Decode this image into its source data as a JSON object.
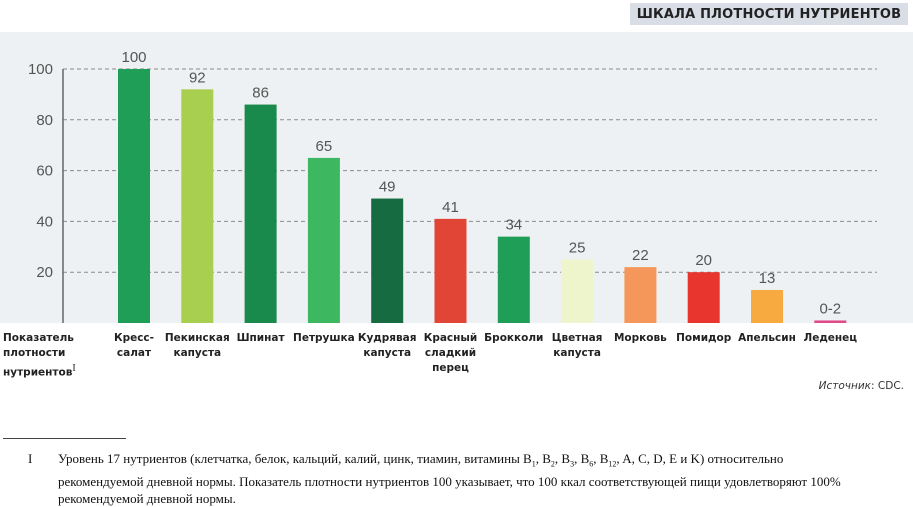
{
  "header": {
    "title": "ШКАЛА ПЛОТНОСТИ НУТРИЕНТОВ"
  },
  "chart_data": {
    "type": "bar",
    "title": "ШКАЛА ПЛОТНОСТИ НУТРИЕНТОВ",
    "ylabel": "Показатель плотности нутриентов",
    "ylabel_lines": [
      "Показатель",
      "плотности",
      "нутриентов"
    ],
    "ylabel_footnote_mark": "I",
    "xlabel": "",
    "ylim": [
      0,
      100
    ],
    "yticks": [
      20,
      40,
      60,
      80,
      100
    ],
    "grid": true,
    "categories": [
      "Кресс-салат",
      "Пекинская капуста",
      "Шпинат",
      "Петрушка",
      "Кудрявая капуста",
      "Красный сладкий перец",
      "Брокколи",
      "Цветная капуста",
      "Морковь",
      "Помидор",
      "Апельсин",
      "Леденец"
    ],
    "category_labels": [
      "Кресс-\nсалат",
      "Пекинская\nкапуста",
      "Шпинат",
      "Петрушка",
      "Кудрявая\nкапуста",
      "Красный\nсладкий\nперец",
      "Брокколи",
      "Цветная\nкапуста",
      "Морковь",
      "Помидор",
      "Апельсин",
      "Леденец"
    ],
    "values": [
      100,
      92,
      86,
      65,
      49,
      41,
      34,
      25,
      22,
      20,
      13,
      1
    ],
    "data_labels": [
      "100",
      "92",
      "86",
      "65",
      "49",
      "41",
      "34",
      "25",
      "22",
      "20",
      "13",
      "0-2"
    ],
    "colors": [
      "#1e9e56",
      "#a8cf50",
      "#1a8a4c",
      "#3db860",
      "#176b40",
      "#e04535",
      "#1e9e56",
      "#eef5cc",
      "#f5975a",
      "#e8352e",
      "#f7aa40",
      "#e04a8a"
    ],
    "source": {
      "label": "Источник",
      "value": ": CDC."
    }
  },
  "footnote": {
    "mark": "I",
    "line1_pre": "Уровень 17 нутриентов (клетчатка, белок, кальций, калий, цинк, тиамин, витамины B",
    "vitamins": [
      {
        "sub": "1",
        "sep": ", B"
      },
      {
        "sub": "2",
        "sep": ", B"
      },
      {
        "sub": "3",
        "sep": ", B"
      },
      {
        "sub": "6",
        "sep": ", B"
      },
      {
        "sub": "12",
        "sep": ""
      }
    ],
    "line1_post": ", A, C, D, E и K) относительно",
    "line2": "рекомендуемой дневной нормы. Показатель плотности нутриентов 100 указывает, что 100 ккал соответствующей пищи удовлетворяют 100%",
    "line3": "рекомендуемой дневной нормы."
  }
}
